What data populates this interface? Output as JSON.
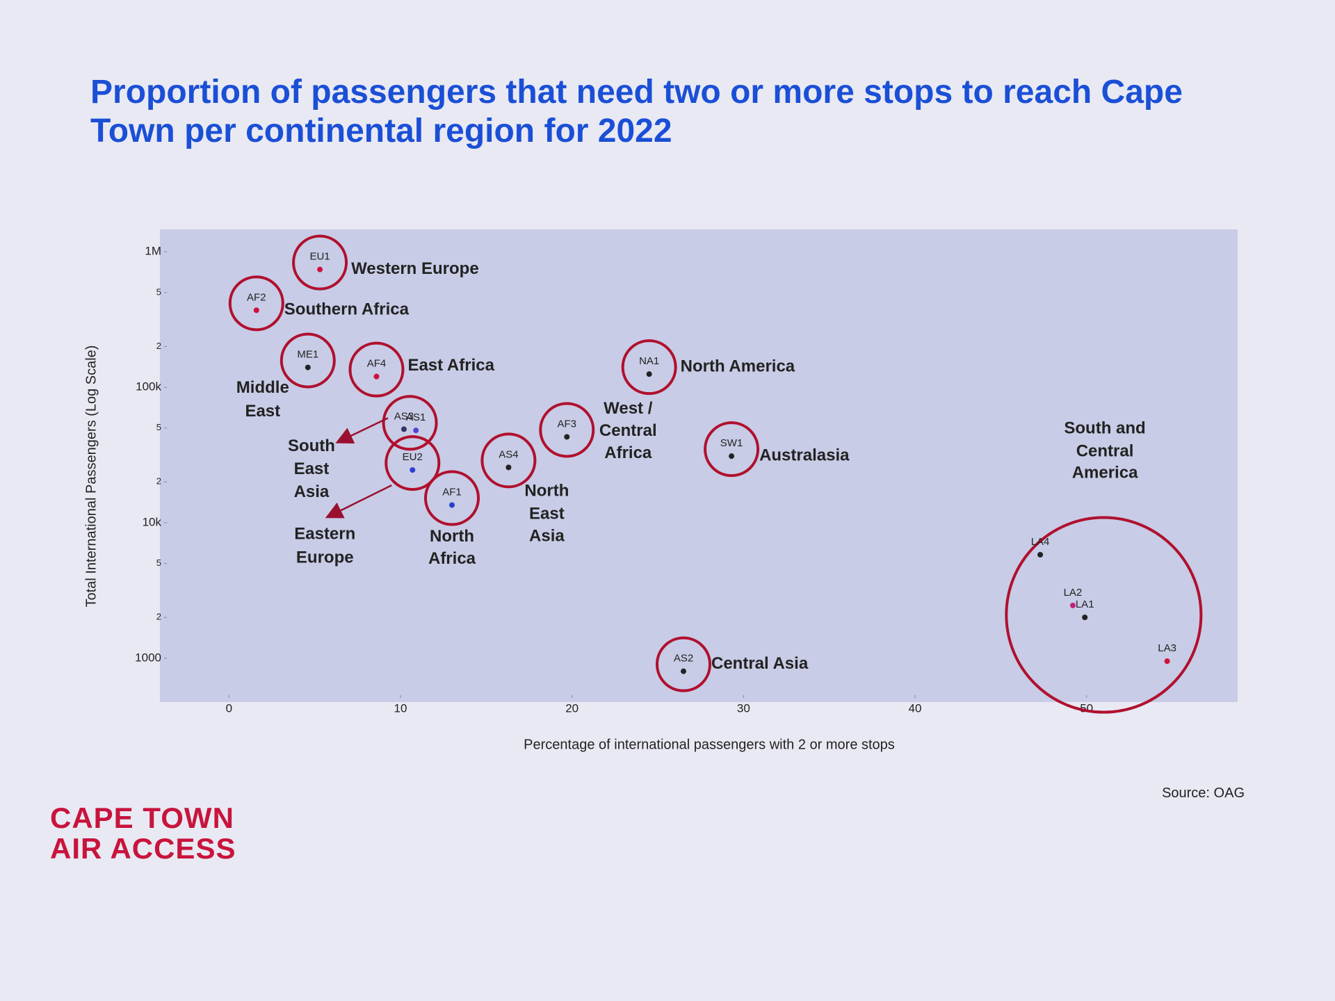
{
  "chart_data": {
    "type": "scatter",
    "title": "Proportion of passengers that need two or more stops to reach Cape Town per continental region for 2022",
    "x_label": "Percentage of international passengers with 2 or more stops",
    "y_label": "Total International Passengers (Log Scale)",
    "source": "Source: OAG",
    "log_y": true,
    "xlim": [
      -2,
      58
    ],
    "ylim": [
      600,
      1300000
    ],
    "xticks": [
      0,
      10,
      20,
      30,
      40,
      50
    ],
    "yticks": [
      1000,
      {
        "value": 2000,
        "label": "2"
      },
      {
        "value": 5000,
        "label": "5"
      },
      {
        "value": 10000,
        "label": "10k"
      },
      {
        "value": 20000,
        "label": "2"
      },
      {
        "value": 50000,
        "label": "5"
      },
      {
        "value": 100000,
        "label": "100k"
      },
      {
        "value": 200000,
        "label": "2"
      },
      {
        "value": 500000,
        "label": "5"
      },
      {
        "value": 1000000,
        "label": "1M"
      }
    ],
    "series": [
      {
        "labels": [
          "EU1",
          "AF2",
          "ME1",
          "AF4",
          "AS3",
          "AS1",
          "EU2",
          "AF1",
          "AS4",
          "AF3",
          "NA1",
          "SW1",
          "AS2",
          "LA4",
          "LA2",
          "LA1",
          "LA3"
        ],
        "x": [
          5.3,
          1.6,
          4.6,
          8.6,
          10.2,
          10.9,
          10.7,
          13.0,
          16.3,
          19.7,
          24.5,
          29.3,
          26.5,
          47.3,
          49.2,
          49.9,
          54.7
        ],
        "values": [
          740000,
          370000,
          140000,
          120000,
          49000,
          48000,
          24500,
          13500,
          25600,
          43000,
          125000,
          31000,
          800,
          5800,
          2450,
          2000,
          950
        ],
        "colors": [
          "#d0103a",
          "#d0103a",
          "#222222",
          "#d0103a",
          "#333366",
          "#5a3fd0",
          "#2a3fd0",
          "#2a3fd0",
          "#222222",
          "#222222",
          "#222222",
          "#222222",
          "#222222",
          "#222222",
          "#c0207a",
          "#222222",
          "#d0103a"
        ]
      }
    ],
    "annotations": [
      {
        "lines": [
          "Western Europe"
        ]
      },
      {
        "lines": [
          "Southern Africa"
        ]
      },
      {
        "lines": [
          "Middle",
          "East"
        ]
      },
      {
        "lines": [
          "East Africa"
        ]
      },
      {
        "lines": [
          "North America"
        ]
      },
      {
        "lines": [
          "South",
          "East",
          "Asia"
        ]
      },
      {
        "lines": [
          "West /",
          "Central",
          "Africa"
        ]
      },
      {
        "lines": [
          "Australasia"
        ]
      },
      {
        "lines": [
          "Eastern",
          "Europe"
        ]
      },
      {
        "lines": [
          "North",
          "Africa"
        ]
      },
      {
        "lines": [
          "North",
          "East",
          "Asia"
        ]
      },
      {
        "lines": [
          "South and",
          "Central",
          "America"
        ]
      },
      {
        "lines": [
          "Central Asia"
        ]
      }
    ]
  },
  "logo": [
    "CAPE TOWN",
    "AIR ACCESS"
  ]
}
